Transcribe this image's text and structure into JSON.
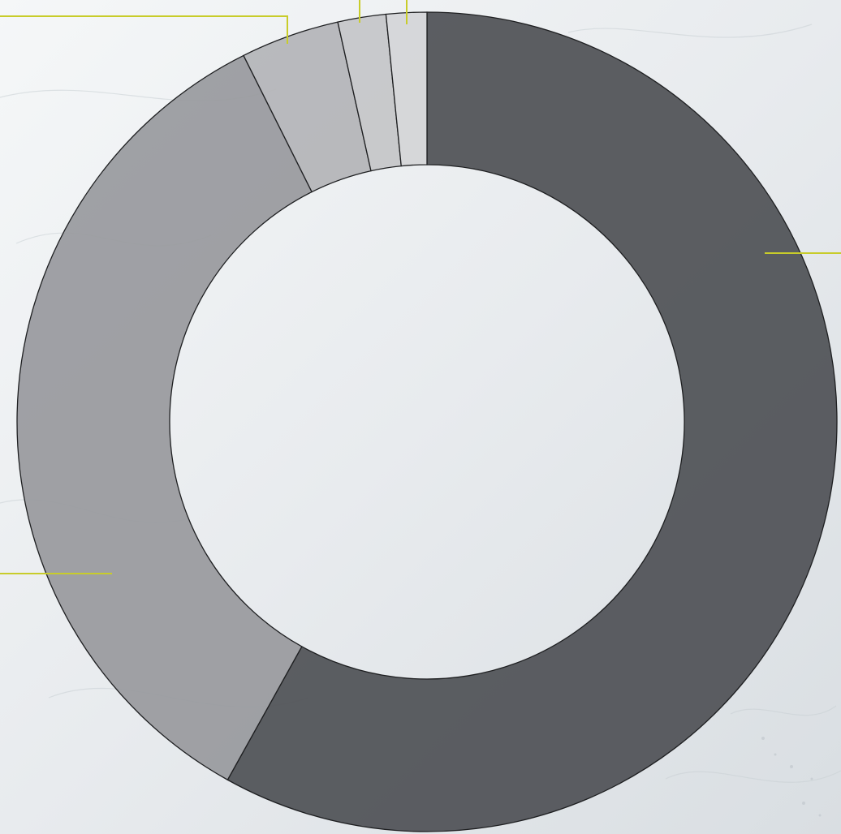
{
  "background": {
    "description_colors": {
      "snow_light": "#f3f5f7",
      "snow_mid": "#e4e8eb",
      "snow_shadow": "#cfd5da"
    }
  },
  "chart_data": {
    "type": "pie",
    "variant": "donut",
    "title": "",
    "start": "top",
    "direction": "clockwise",
    "slices": [
      {
        "value": 58.2,
        "color": "#505256"
      },
      {
        "value": 34.6,
        "color": "#999a9e"
      },
      {
        "value": 3.9,
        "color": "#b4b5b8"
      },
      {
        "value": 1.9,
        "color": "#c5c6c8"
      },
      {
        "value": 1.6,
        "color": "#d4d5d7"
      }
    ],
    "leader_color": "#c8cc2a",
    "legend": "none"
  }
}
